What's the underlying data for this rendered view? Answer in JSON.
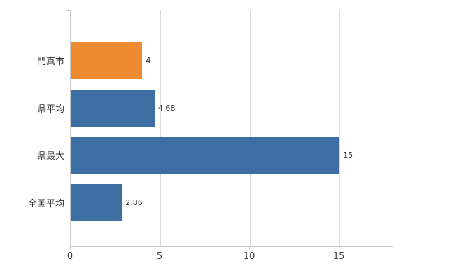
{
  "chart_data": {
    "type": "bar",
    "orientation": "horizontal",
    "title": "",
    "xlabel": "",
    "ylabel": "",
    "categories": [
      "門真市",
      "県平均",
      "県最大",
      "全国平均"
    ],
    "values": [
      4,
      4.68,
      15,
      2.86
    ],
    "value_labels": [
      "4",
      "4.68",
      "15",
      "2.86"
    ],
    "bar_colors": [
      "#ee8a2f",
      "#3d6fa5",
      "#3d6fa5",
      "#3d6fa5"
    ],
    "xlim": [
      0,
      18
    ],
    "x_ticks": [
      0,
      5,
      10,
      15
    ],
    "x_tick_labels": [
      "0",
      "5",
      "10",
      "15"
    ],
    "grid": true,
    "legend": false
  },
  "colors": {
    "bar_blue": "#3d6fa5",
    "bar_orange": "#ee8a2f",
    "gridline": "#dcdcdc",
    "axis": "#c9c9c9",
    "text": "#333333",
    "background": "#ffffff"
  }
}
